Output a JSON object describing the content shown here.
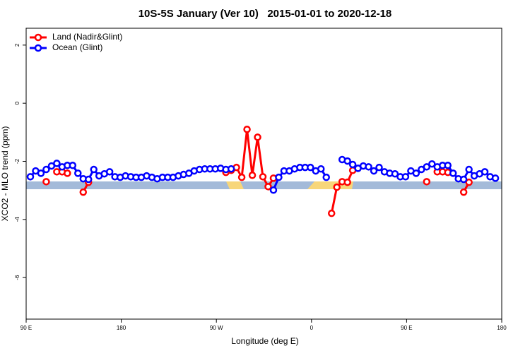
{
  "chart_data": {
    "type": "line",
    "title": "10S-5S January (Ver 10)   2015-01-01 to 2020-12-18",
    "xlabel": "Longitude (deg E)",
    "ylabel": "XCO2 - MLO trend (ppm)",
    "xlim": [
      90,
      540
    ],
    "ylim": [
      -7.43,
      2.58
    ],
    "xticks": [
      {
        "value": 90,
        "label": "90 E"
      },
      180,
      {
        "value": 270,
        "label": "90 W"
      },
      {
        "value": 360,
        "label": "0"
      },
      {
        "value": 450,
        "label": "90 E"
      },
      {
        "value": 540,
        "label": "180"
      }
    ],
    "yticks": [
      -6,
      -4,
      -2,
      0,
      2
    ],
    "legend": "top-left",
    "x": [
      94,
      99,
      104,
      109,
      114,
      119,
      124,
      129,
      134,
      139,
      144,
      149,
      154,
      159,
      164,
      169,
      174,
      179,
      184,
      189,
      194,
      199,
      204,
      209,
      214,
      219,
      224,
      229,
      234,
      239,
      244,
      249,
      254,
      259,
      264,
      269,
      274,
      279,
      284,
      289,
      294,
      299,
      304,
      309,
      314,
      319,
      324,
      329,
      334,
      339,
      344,
      349,
      354,
      359,
      364,
      369,
      374,
      379,
      384,
      389,
      394,
      399,
      404,
      409,
      414,
      419,
      424,
      429,
      434,
      439,
      444,
      449,
      454,
      459,
      464,
      469,
      474,
      479,
      484,
      489,
      494,
      499,
      504,
      509,
      514,
      519,
      524,
      529,
      534
    ],
    "series": [
      {
        "name": "Land (Nadir&Glint)",
        "color": "#ff0000",
        "values": [
          null,
          null,
          null,
          -2.7,
          null,
          -2.36,
          -2.36,
          -2.41,
          null,
          null,
          -3.06,
          -2.72,
          null,
          null,
          null,
          null,
          null,
          null,
          null,
          null,
          null,
          null,
          null,
          null,
          null,
          null,
          null,
          null,
          null,
          null,
          null,
          null,
          null,
          null,
          null,
          null,
          null,
          -2.38,
          -2.31,
          -2.21,
          -2.55,
          -0.9,
          -2.48,
          -1.17,
          -2.53,
          -2.87,
          -2.58,
          null,
          null,
          null,
          null,
          null,
          null,
          null,
          null,
          null,
          null,
          -3.79,
          -2.89,
          -2.7,
          -2.72,
          -2.31,
          null,
          null,
          null,
          null,
          null,
          null,
          null,
          null,
          null,
          null,
          null,
          null,
          null,
          -2.7,
          null,
          -2.36,
          -2.36,
          -2.38,
          null,
          null,
          -3.06,
          -2.72,
          null,
          null,
          null,
          null,
          null
        ]
      },
      {
        "name": "Ocean (Glint)",
        "color": "#0000ff",
        "values": [
          -2.53,
          -2.33,
          -2.41,
          -2.28,
          -2.16,
          -2.07,
          -2.19,
          -2.14,
          -2.14,
          -2.41,
          -2.6,
          -2.62,
          -2.28,
          -2.5,
          -2.43,
          -2.36,
          -2.53,
          -2.55,
          -2.5,
          -2.53,
          -2.55,
          -2.55,
          -2.5,
          -2.55,
          -2.6,
          -2.55,
          -2.55,
          -2.55,
          -2.5,
          -2.45,
          -2.41,
          -2.33,
          -2.28,
          -2.26,
          -2.26,
          -2.26,
          -2.24,
          -2.28,
          -2.26,
          null,
          null,
          null,
          null,
          null,
          null,
          null,
          -2.99,
          -2.55,
          -2.33,
          -2.33,
          -2.26,
          -2.21,
          -2.21,
          -2.21,
          -2.33,
          -2.26,
          -2.55,
          null,
          null,
          -1.94,
          -1.99,
          -2.11,
          -2.24,
          -2.16,
          -2.19,
          -2.33,
          -2.21,
          -2.36,
          -2.41,
          -2.43,
          -2.53,
          -2.53,
          -2.33,
          -2.41,
          -2.28,
          -2.19,
          -2.09,
          -2.19,
          -2.14,
          -2.14,
          -2.41,
          -2.6,
          -2.62,
          -2.28,
          -2.5,
          -2.43,
          -2.36,
          -2.53,
          -2.58
        ]
      }
    ]
  }
}
